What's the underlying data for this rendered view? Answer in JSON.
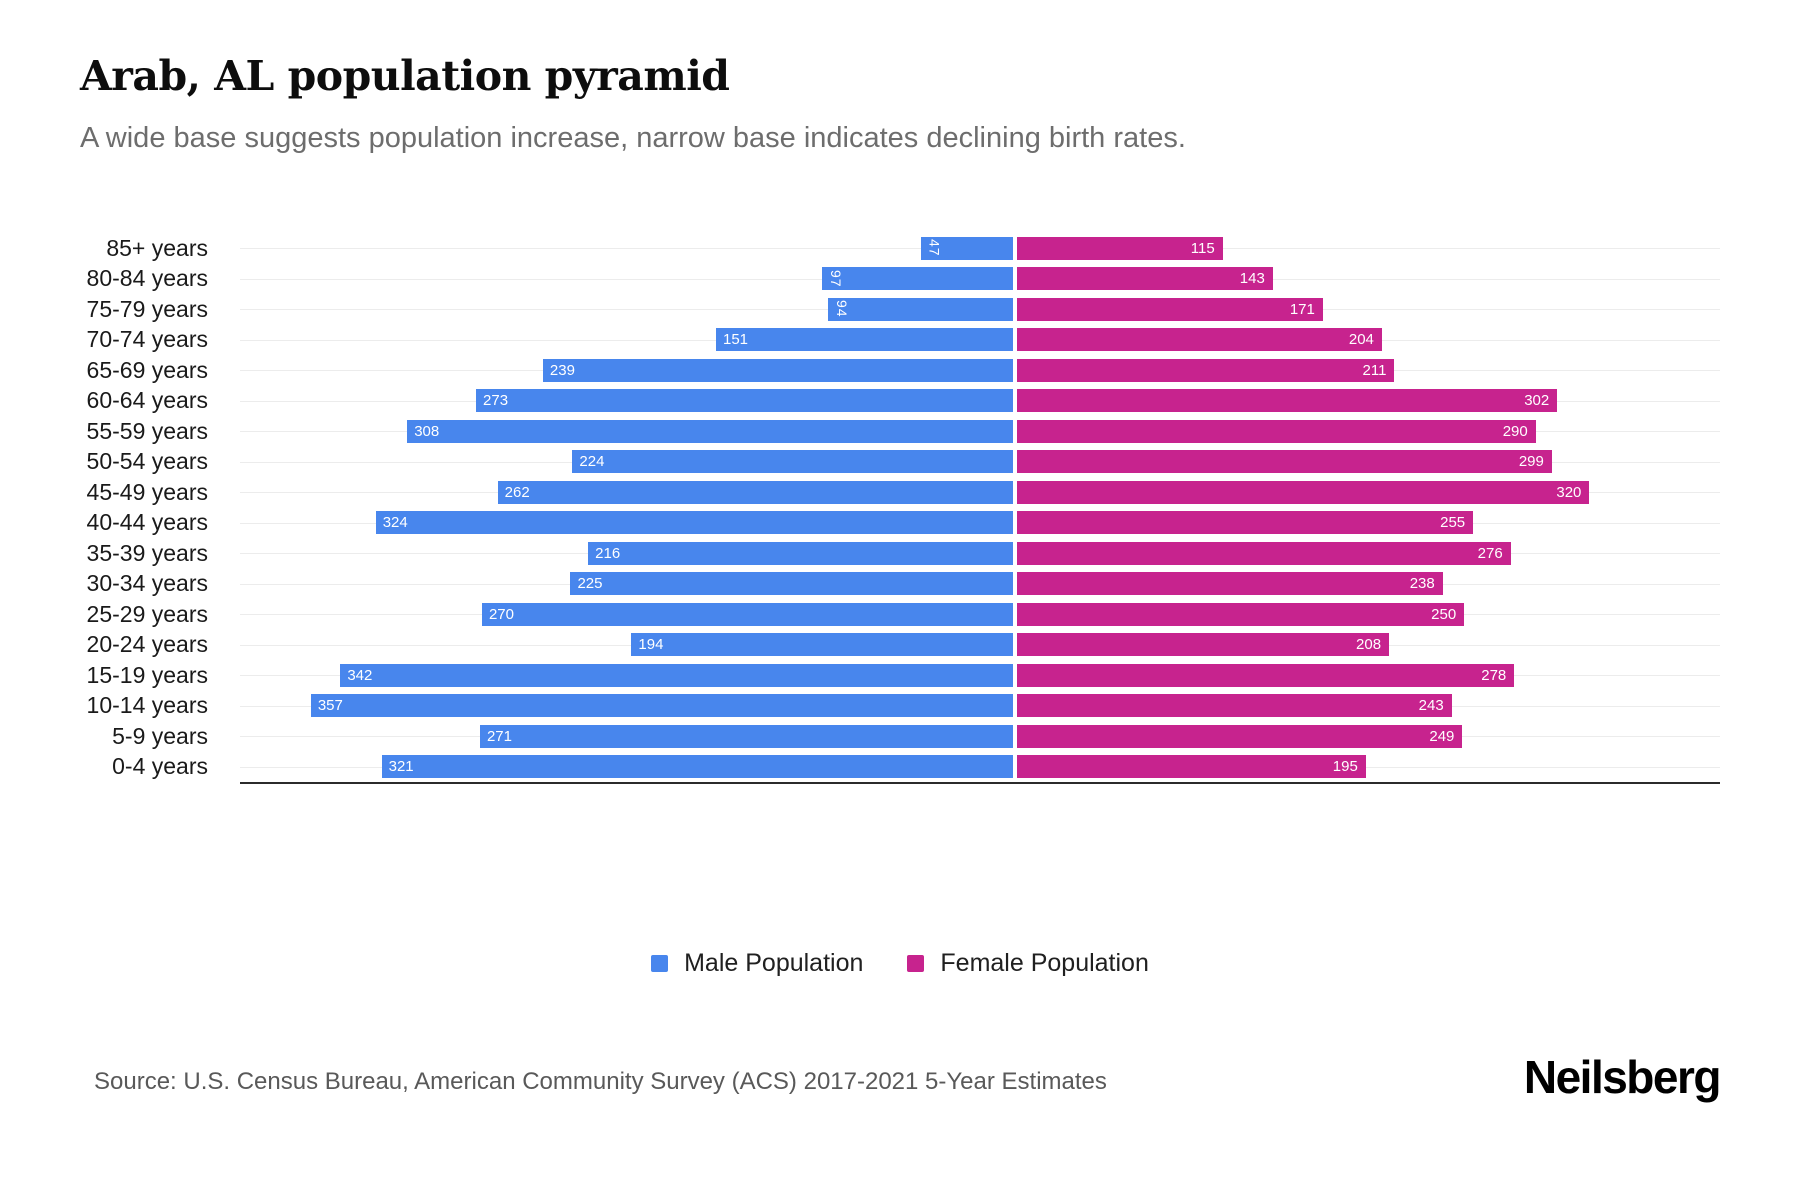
{
  "title": "Arab, AL population pyramid",
  "subtitle": "A wide base suggests population increase, narrow base indicates declining birth rates.",
  "chart_data": {
    "type": "bar",
    "variant": "population-pyramid",
    "orientation": "horizontal",
    "categories": [
      "85+ years",
      "80-84 years",
      "75-79 years",
      "70-74 years",
      "65-69 years",
      "60-64 years",
      "55-59 years",
      "50-54 years",
      "45-49 years",
      "40-44 years",
      "35-39 years",
      "30-34 years",
      "25-29 years",
      "20-24 years",
      "15-19 years",
      "10-14 years",
      "5-9 years",
      "0-4 years"
    ],
    "series": [
      {
        "name": "Male Population",
        "side": "left",
        "color": "#4886ED",
        "values": [
          47,
          97,
          94,
          151,
          239,
          273,
          308,
          224,
          262,
          324,
          216,
          225,
          270,
          194,
          342,
          357,
          271,
          321
        ]
      },
      {
        "name": "Female Population",
        "side": "right",
        "color": "#C7238E",
        "values": [
          115,
          143,
          171,
          204,
          211,
          302,
          290,
          299,
          320,
          255,
          276,
          238,
          250,
          208,
          278,
          243,
          249,
          195
        ]
      }
    ],
    "axis_max": 393,
    "rotate_label_below": 110,
    "value_labels": "inside-bar-end, white",
    "grid": "horizontal-light",
    "legend_position": "bottom-center"
  },
  "legend": {
    "items": [
      {
        "label": "Male Population",
        "color": "#4886ED"
      },
      {
        "label": "Female Population",
        "color": "#C7238E"
      }
    ]
  },
  "footer": {
    "source": "Source: U.S. Census Bureau, American Community Survey (ACS) 2017-2021 5-Year Estimates",
    "brand": "Neilsberg"
  },
  "colors": {
    "male": "#4886ED",
    "female": "#C7238E",
    "background": "#FFFFFF",
    "gridline": "#ECECEC",
    "axis_line": "#2B2B2B",
    "title_text": "#0D0D0D",
    "subtitle_text": "#6D6D6D",
    "age_label_text": "#1A1A1A",
    "source_text": "#595959"
  }
}
